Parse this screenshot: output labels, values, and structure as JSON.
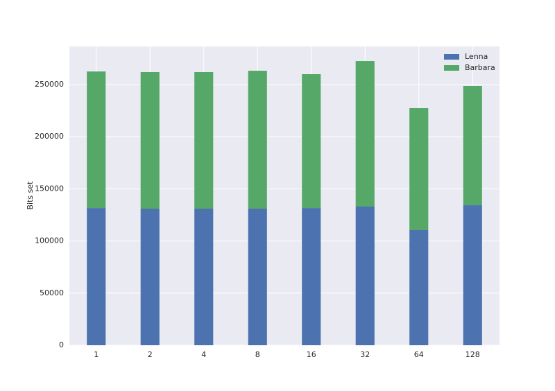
{
  "chart_data": {
    "type": "stacked_bar",
    "y_label": "Bits set",
    "categories": [
      "1",
      "2",
      "4",
      "8",
      "16",
      "32",
      "64",
      "128"
    ],
    "series": [
      {
        "name": "Lenna",
        "color": "#4c72b0",
        "values": [
          131600,
          131000,
          131000,
          131000,
          131600,
          133000,
          110400,
          134300
        ]
      },
      {
        "name": "Barbara",
        "color": "#55a868",
        "values": [
          131000,
          131000,
          131000,
          132300,
          128400,
          139600,
          117000,
          114400
        ]
      }
    ],
    "ylim": [
      0,
      286600
    ],
    "yticks": [
      0,
      50000,
      100000,
      150000,
      200000,
      250000
    ],
    "grid": true,
    "legend": "upper-right"
  }
}
